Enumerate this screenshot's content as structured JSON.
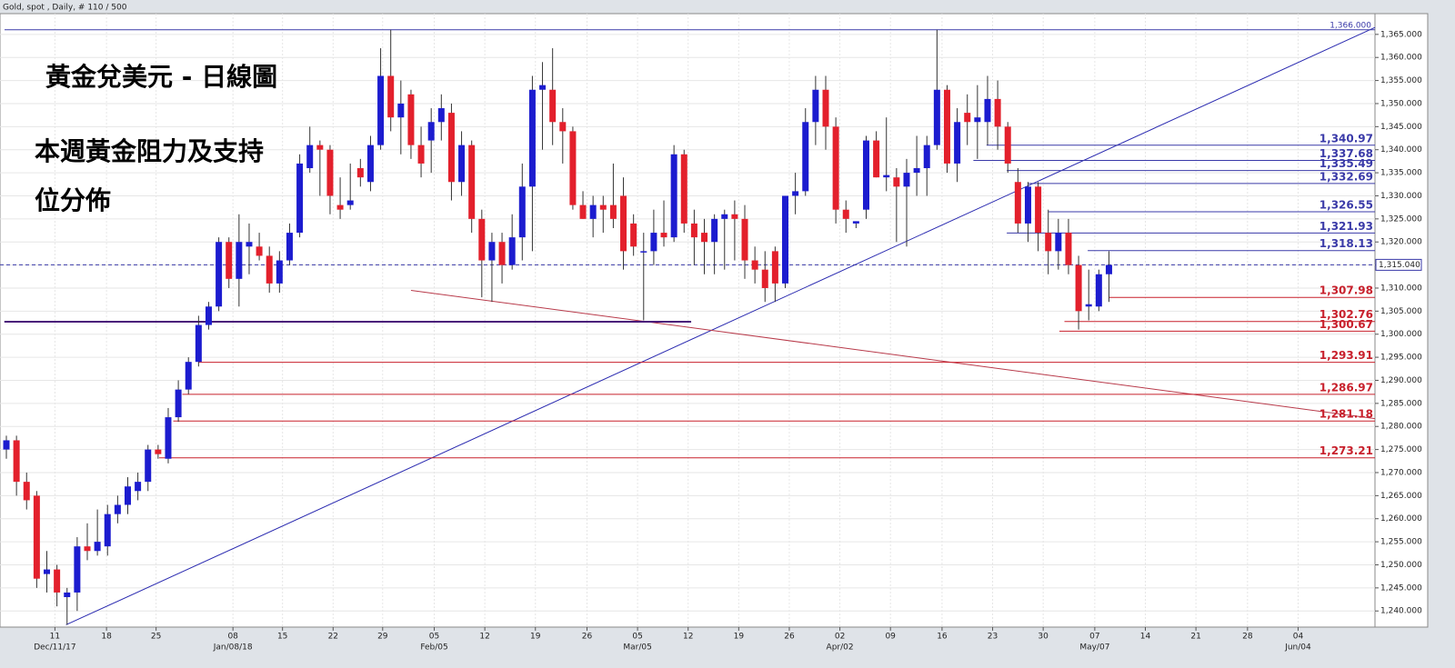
{
  "chart_data": {
    "type": "candlestick",
    "header": "Gold, spot , Daily, # 110 / 500",
    "title": "黃金兌美元 - 日線圖",
    "subtitle_lines": [
      "本週黃金阻力及支持",
      "位分佈"
    ],
    "up_color": "#1c1ccf",
    "down_color": "#e3202c",
    "ylim": [
      1236.5,
      1369.5
    ],
    "xlim": [
      -0.63,
      135.3
    ],
    "grid": true,
    "yticks": [
      {
        "value": 1240,
        "label": "1,240.000"
      },
      {
        "value": 1245,
        "label": "1,245.000"
      },
      {
        "value": 1250,
        "label": "1,250.000"
      },
      {
        "value": 1255,
        "label": "1,255.000"
      },
      {
        "value": 1260,
        "label": "1,260.000"
      },
      {
        "value": 1265,
        "label": "1,265.000"
      },
      {
        "value": 1270,
        "label": "1,270.000"
      },
      {
        "value": 1275,
        "label": "1,275.000"
      },
      {
        "value": 1280,
        "label": "1,280.000"
      },
      {
        "value": 1285,
        "label": "1,285.000"
      },
      {
        "value": 1290,
        "label": "1,290.000"
      },
      {
        "value": 1295,
        "label": "1,295.000"
      },
      {
        "value": 1300,
        "label": "1,300.000"
      },
      {
        "value": 1305,
        "label": "1,305.000"
      },
      {
        "value": 1310,
        "label": "1,310.000"
      },
      {
        "value": 1315,
        "label": "1,315.000"
      },
      {
        "value": 1320,
        "label": "1,320.000"
      },
      {
        "value": 1325,
        "label": "1,325.000"
      },
      {
        "value": 1330,
        "label": "1,330.000"
      },
      {
        "value": 1335,
        "label": "1,335.000"
      },
      {
        "value": 1340,
        "label": "1,340.000"
      },
      {
        "value": 1345,
        "label": "1,345.000"
      },
      {
        "value": 1350,
        "label": "1,350.000"
      },
      {
        "value": 1355,
        "label": "1,355.000"
      },
      {
        "value": 1360,
        "label": "1,360.000"
      },
      {
        "value": 1365,
        "label": "1,365.000"
      }
    ],
    "xticks": [
      {
        "value": 4.8,
        "label": "11"
      },
      {
        "value": 9.9,
        "label": "18"
      },
      {
        "value": 14.8,
        "label": "25"
      },
      {
        "value": 22.4,
        "label": "08"
      },
      {
        "value": 27.3,
        "label": "15"
      },
      {
        "value": 32.3,
        "label": "22"
      },
      {
        "value": 37.2,
        "label": "29"
      },
      {
        "value": 42.3,
        "label": "05"
      },
      {
        "value": 47.3,
        "label": "12"
      },
      {
        "value": 52.3,
        "label": "19"
      },
      {
        "value": 57.4,
        "label": "26"
      },
      {
        "value": 62.4,
        "label": "05"
      },
      {
        "value": 67.4,
        "label": "12"
      },
      {
        "value": 72.4,
        "label": "19"
      },
      {
        "value": 77.4,
        "label": "26"
      },
      {
        "value": 82.4,
        "label": "02"
      },
      {
        "value": 87.4,
        "label": "09"
      },
      {
        "value": 92.5,
        "label": "16"
      },
      {
        "value": 97.5,
        "label": "23"
      },
      {
        "value": 102.5,
        "label": "30"
      },
      {
        "value": 107.6,
        "label": "07"
      },
      {
        "value": 112.6,
        "label": "14"
      },
      {
        "value": 117.6,
        "label": "21"
      },
      {
        "value": 122.7,
        "label": "28"
      },
      {
        "value": 127.7,
        "label": "04"
      }
    ],
    "x_period_labels": [
      {
        "value": 4.8,
        "label": "Dec/11/17"
      },
      {
        "value": 22.4,
        "label": "Jan/08/18"
      },
      {
        "value": 42.3,
        "label": "Feb/05"
      },
      {
        "value": 62.4,
        "label": "Mar/05"
      },
      {
        "value": 82.4,
        "label": "Apr/02"
      },
      {
        "value": 107.6,
        "label": "May/07"
      },
      {
        "value": 127.7,
        "label": "Jun/04"
      }
    ],
    "open": [
      1275,
      1277,
      1268,
      1265,
      1248,
      1249,
      1243,
      1244,
      1254,
      1253,
      1254,
      1261,
      1263,
      1266,
      1268,
      1275,
      1273,
      1282,
      1288,
      1294,
      1302,
      1306,
      1320,
      1312,
      1319,
      1319,
      1317,
      1311,
      1316,
      1322,
      1336,
      1341,
      1340,
      1328,
      1328,
      1336,
      1333,
      1341,
      1356,
      1347,
      1352,
      1341,
      1342,
      1346,
      1348,
      1333,
      1341,
      1325,
      1316,
      1320,
      1315,
      1321,
      1332,
      1353,
      1353,
      1346,
      1344,
      1328,
      1325,
      1328,
      1328,
      1330,
      1324,
      1318,
      1318,
      1322,
      1321,
      1339,
      1324,
      1322,
      1320,
      1325,
      1326,
      1325,
      1316,
      1314,
      1318,
      1311,
      1330,
      1331,
      1346,
      1353,
      1345,
      1327,
      1324,
      1327,
      1342,
      1334,
      1334,
      1332,
      1335,
      1336,
      1341,
      1353,
      1337,
      1348,
      1346,
      1346,
      1351,
      1345,
      1333,
      1324,
      1332,
      1322,
      1318,
      1322,
      1315,
      1306,
      1306,
      1313
    ],
    "high": [
      1278,
      1278,
      1270,
      1266,
      1253,
      1250,
      1245,
      1256,
      1259,
      1262,
      1263,
      1265,
      1269,
      1270,
      1276,
      1276,
      1284,
      1290,
      1295,
      1304,
      1307,
      1321,
      1321,
      1326,
      1324,
      1322,
      1319,
      1318,
      1324,
      1339,
      1345,
      1342,
      1341,
      1334,
      1337,
      1338,
      1343,
      1362,
      1366,
      1355,
      1353,
      1345,
      1349,
      1352,
      1350,
      1344,
      1342,
      1327,
      1322,
      1322,
      1326,
      1337,
      1356,
      1359,
      1362,
      1349,
      1345,
      1331,
      1330,
      1330,
      1337,
      1334,
      1326,
      1322,
      1327,
      1329,
      1341,
      1340,
      1327,
      1325,
      1326,
      1327,
      1329,
      1328,
      1319,
      1318,
      1319,
      1330,
      1335,
      1349,
      1356,
      1356,
      1347,
      1329,
      1324,
      1343,
      1344,
      1347,
      1336,
      1338,
      1343,
      1343,
      1366,
      1354,
      1349,
      1352,
      1354,
      1356,
      1355,
      1346,
      1336,
      1333,
      1333,
      1327,
      1325,
      1325,
      1317,
      1314,
      1314,
      1318
    ],
    "low": [
      1273,
      1265,
      1262,
      1245,
      1244,
      1241,
      1237,
      1240,
      1251,
      1252,
      1252,
      1259,
      1261,
      1264,
      1266,
      1273,
      1272,
      1281,
      1287,
      1293,
      1301,
      1305,
      1310,
      1306,
      1313,
      1316,
      1309,
      1309,
      1315,
      1321,
      1335,
      1330,
      1326,
      1325,
      1327,
      1332,
      1331,
      1340,
      1344,
      1339,
      1338,
      1334,
      1335,
      1342,
      1329,
      1330,
      1322,
      1308,
      1307,
      1311,
      1314,
      1316,
      1318,
      1340,
      1341,
      1337,
      1327,
      1325,
      1321,
      1322,
      1323,
      1314,
      1317,
      1303,
      1315,
      1319,
      1320,
      1322,
      1315,
      1313,
      1313,
      1314,
      1316,
      1312,
      1311,
      1307,
      1307,
      1310,
      1326,
      1330,
      1341,
      1340,
      1324,
      1322,
      1323,
      1325,
      1334,
      1331,
      1320,
      1319,
      1330,
      1330,
      1340,
      1335,
      1333,
      1341,
      1338,
      1341,
      1340,
      1335,
      1322,
      1320,
      1318,
      1313,
      1314,
      1313,
      1301,
      1303,
      1305,
      1307
    ],
    "close": [
      1277,
      1268,
      1264,
      1247,
      1249,
      1244,
      1244,
      1254,
      1253,
      1255,
      1261,
      1263,
      1267,
      1268,
      1275,
      1274,
      1282,
      1288,
      1294,
      1302,
      1306,
      1320,
      1312,
      1320,
      1320,
      1317,
      1311,
      1316,
      1322,
      1337,
      1341,
      1340,
      1330,
      1327,
      1329,
      1334,
      1341,
      1356,
      1347,
      1350,
      1341,
      1337,
      1346,
      1349,
      1333,
      1341,
      1325,
      1316,
      1320,
      1315,
      1321,
      1332,
      1353,
      1354,
      1346,
      1344,
      1328,
      1325,
      1328,
      1327,
      1325,
      1318,
      1319,
      1318,
      1322,
      1321,
      1339,
      1324,
      1321,
      1320,
      1325,
      1326,
      1325,
      1316,
      1314,
      1310,
      1311,
      1330,
      1331,
      1346,
      1353,
      1345,
      1327,
      1325,
      1324.5,
      1342,
      1334,
      1334.5,
      1332,
      1335,
      1336,
      1341,
      1353,
      1337,
      1346,
      1346,
      1347,
      1351,
      1345,
      1337,
      1324,
      1332,
      1322,
      1318,
      1322,
      1315,
      1305,
      1306.5,
      1313,
      1315
    ],
    "levels": [
      {
        "value": 1340.97,
        "label": "1,340.97",
        "start": 96.9,
        "color": "#3a3aa8"
      },
      {
        "value": 1337.68,
        "label": "1,337.68",
        "start": 95.6,
        "color": "#3a3aa8"
      },
      {
        "value": 1335.49,
        "label": "1,335.49",
        "start": 98.9,
        "color": "#3a3aa8"
      },
      {
        "value": 1332.69,
        "label": "1,332.69",
        "start": 101,
        "color": "#3a3aa8"
      },
      {
        "value": 1326.55,
        "label": "1,326.55",
        "start": 103,
        "color": "#3a3aa8"
      },
      {
        "value": 1321.93,
        "label": "1,321.93",
        "start": 98.9,
        "color": "#3a3aa8"
      },
      {
        "value": 1318.13,
        "label": "1,318.13",
        "start": 106.9,
        "color": "#3a3aa8"
      },
      {
        "value": 1307.98,
        "label": "1,307.98",
        "start": 109,
        "color": "#c8202c"
      },
      {
        "value": 1302.76,
        "label": "1,302.76",
        "start": 104.6,
        "color": "#c8202c"
      },
      {
        "value": 1300.67,
        "label": "1,300.67",
        "start": 104.1,
        "color": "#c8202c"
      },
      {
        "value": 1293.91,
        "label": "1,293.91",
        "start": 19,
        "color": "#c8202c"
      },
      {
        "value": 1286.97,
        "label": "1,286.97",
        "start": 17.4,
        "color": "#c8202c"
      },
      {
        "value": 1281.18,
        "label": "1,281.18",
        "start": 16.5,
        "color": "#c8202c"
      },
      {
        "value": 1273.21,
        "label": "1,273.21",
        "start": 15.1,
        "color": "#c8202c"
      }
    ],
    "top_line": {
      "value": 1366,
      "label": "1,366.000",
      "color": "#3a3aa8"
    },
    "support_line": {
      "value": 1302.7,
      "start": -0.2,
      "end": 67.7,
      "color": "#4a1a7a"
    },
    "last_price": {
      "value": 1315.04,
      "label": "1,315.040",
      "color": "#3a3aa8"
    },
    "trend_lines": [
      {
        "x": [
          5.9,
          135.3
        ],
        "y": [
          1237,
          1366.5
        ],
        "color": "#2a2ab0"
      },
      {
        "x": [
          40,
          135.3
        ],
        "y": [
          1309.5,
          1281.7
        ],
        "color": "#b83a4a"
      }
    ]
  }
}
